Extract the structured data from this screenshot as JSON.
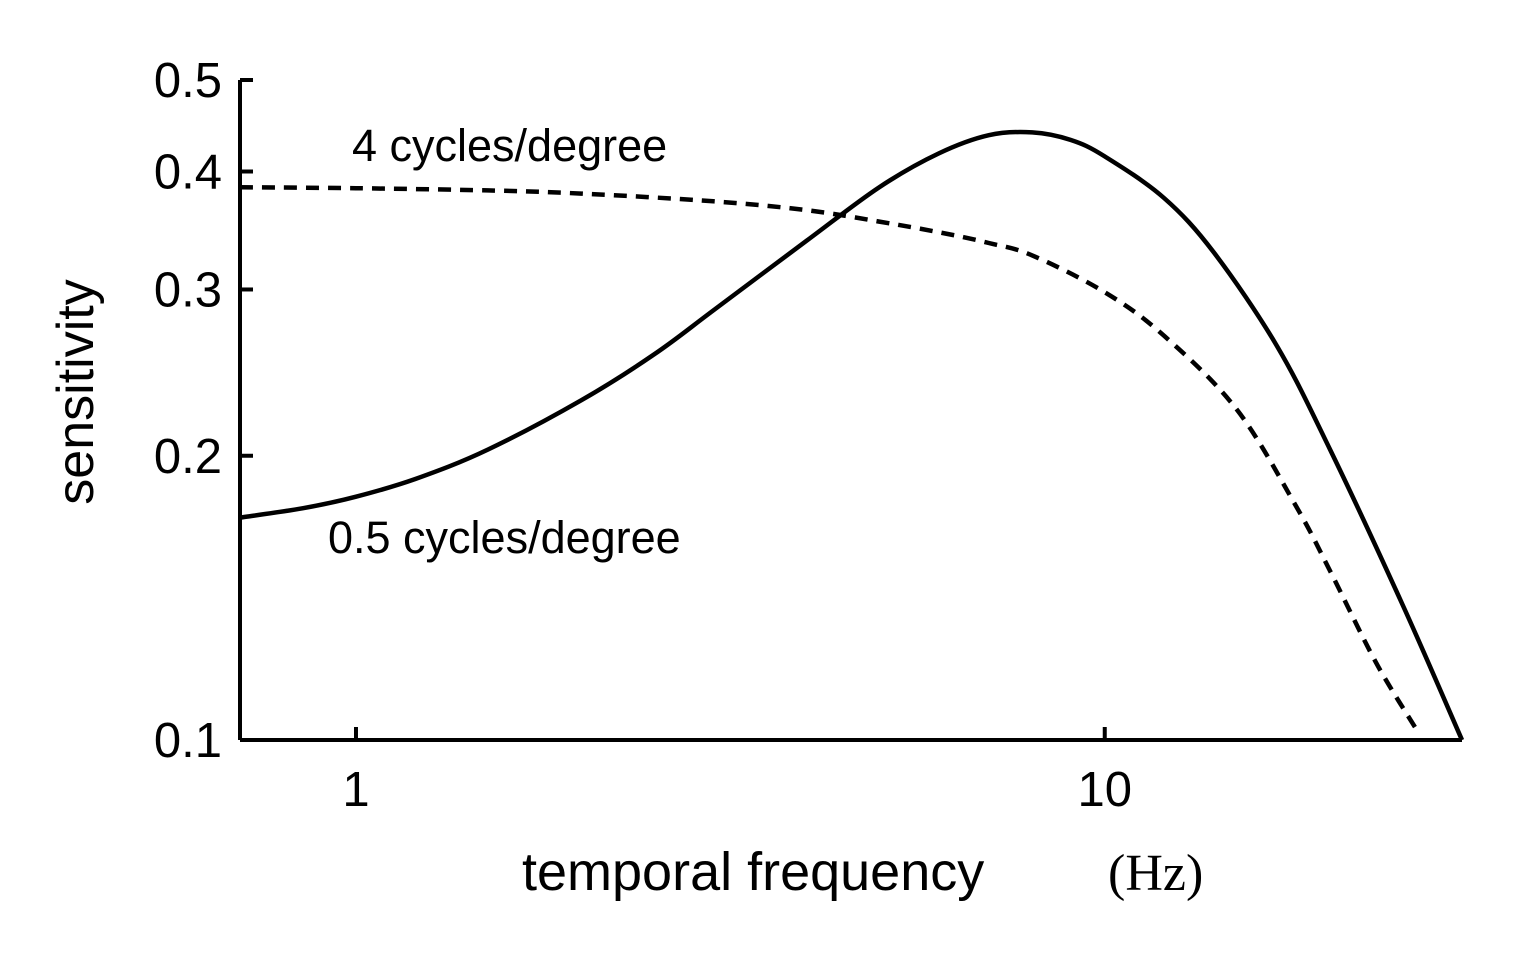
{
  "chart_data": {
    "type": "line",
    "xlabel": "temporal frequency",
    "xunit": "(Hz)",
    "ylabel": "sensitivity",
    "x_scale": "log",
    "y_scale": "log",
    "xlim": [
      0.7,
      30
    ],
    "ylim": [
      0.1,
      0.5
    ],
    "x_ticks": [
      1,
      10
    ],
    "x_tick_labels": [
      "1",
      "10"
    ],
    "y_ticks": [
      0.1,
      0.2,
      0.3,
      0.4,
      0.5
    ],
    "y_tick_labels": [
      "0.1",
      "0.2",
      "0.3",
      "0.4",
      "0.5"
    ],
    "grid": false,
    "annotations": [
      "4 cycles/degree",
      "0.5 cycles/degree"
    ],
    "series": [
      {
        "name": "0.5 cycles/degree",
        "style": "solid",
        "x": [
          0.7,
          0.85,
          1.0,
          1.2,
          1.5,
          2.0,
          2.5,
          3.0,
          4.0,
          5.0,
          6.0,
          7.0,
          8.0,
          9.0,
          10.0,
          12.0,
          14.0,
          17.0,
          20.0,
          25.0,
          30.0
        ],
        "y": [
          0.172,
          0.176,
          0.181,
          0.189,
          0.203,
          0.229,
          0.256,
          0.285,
          0.338,
          0.385,
          0.418,
          0.437,
          0.44,
          0.432,
          0.415,
          0.375,
          0.328,
          0.261,
          0.203,
          0.139,
          0.1
        ]
      },
      {
        "name": "4 cycles/degree",
        "style": "dashed",
        "x": [
          0.7,
          1.0,
          1.5,
          2.0,
          3.0,
          4.0,
          5.0,
          6.0,
          7.0,
          8.0,
          10.0,
          12.0,
          15.0,
          18.0,
          20.0,
          23.0,
          26.0
        ],
        "y": [
          0.385,
          0.384,
          0.382,
          0.379,
          0.372,
          0.364,
          0.354,
          0.345,
          0.336,
          0.326,
          0.298,
          0.268,
          0.224,
          0.177,
          0.151,
          0.121,
          0.103
        ]
      }
    ]
  }
}
